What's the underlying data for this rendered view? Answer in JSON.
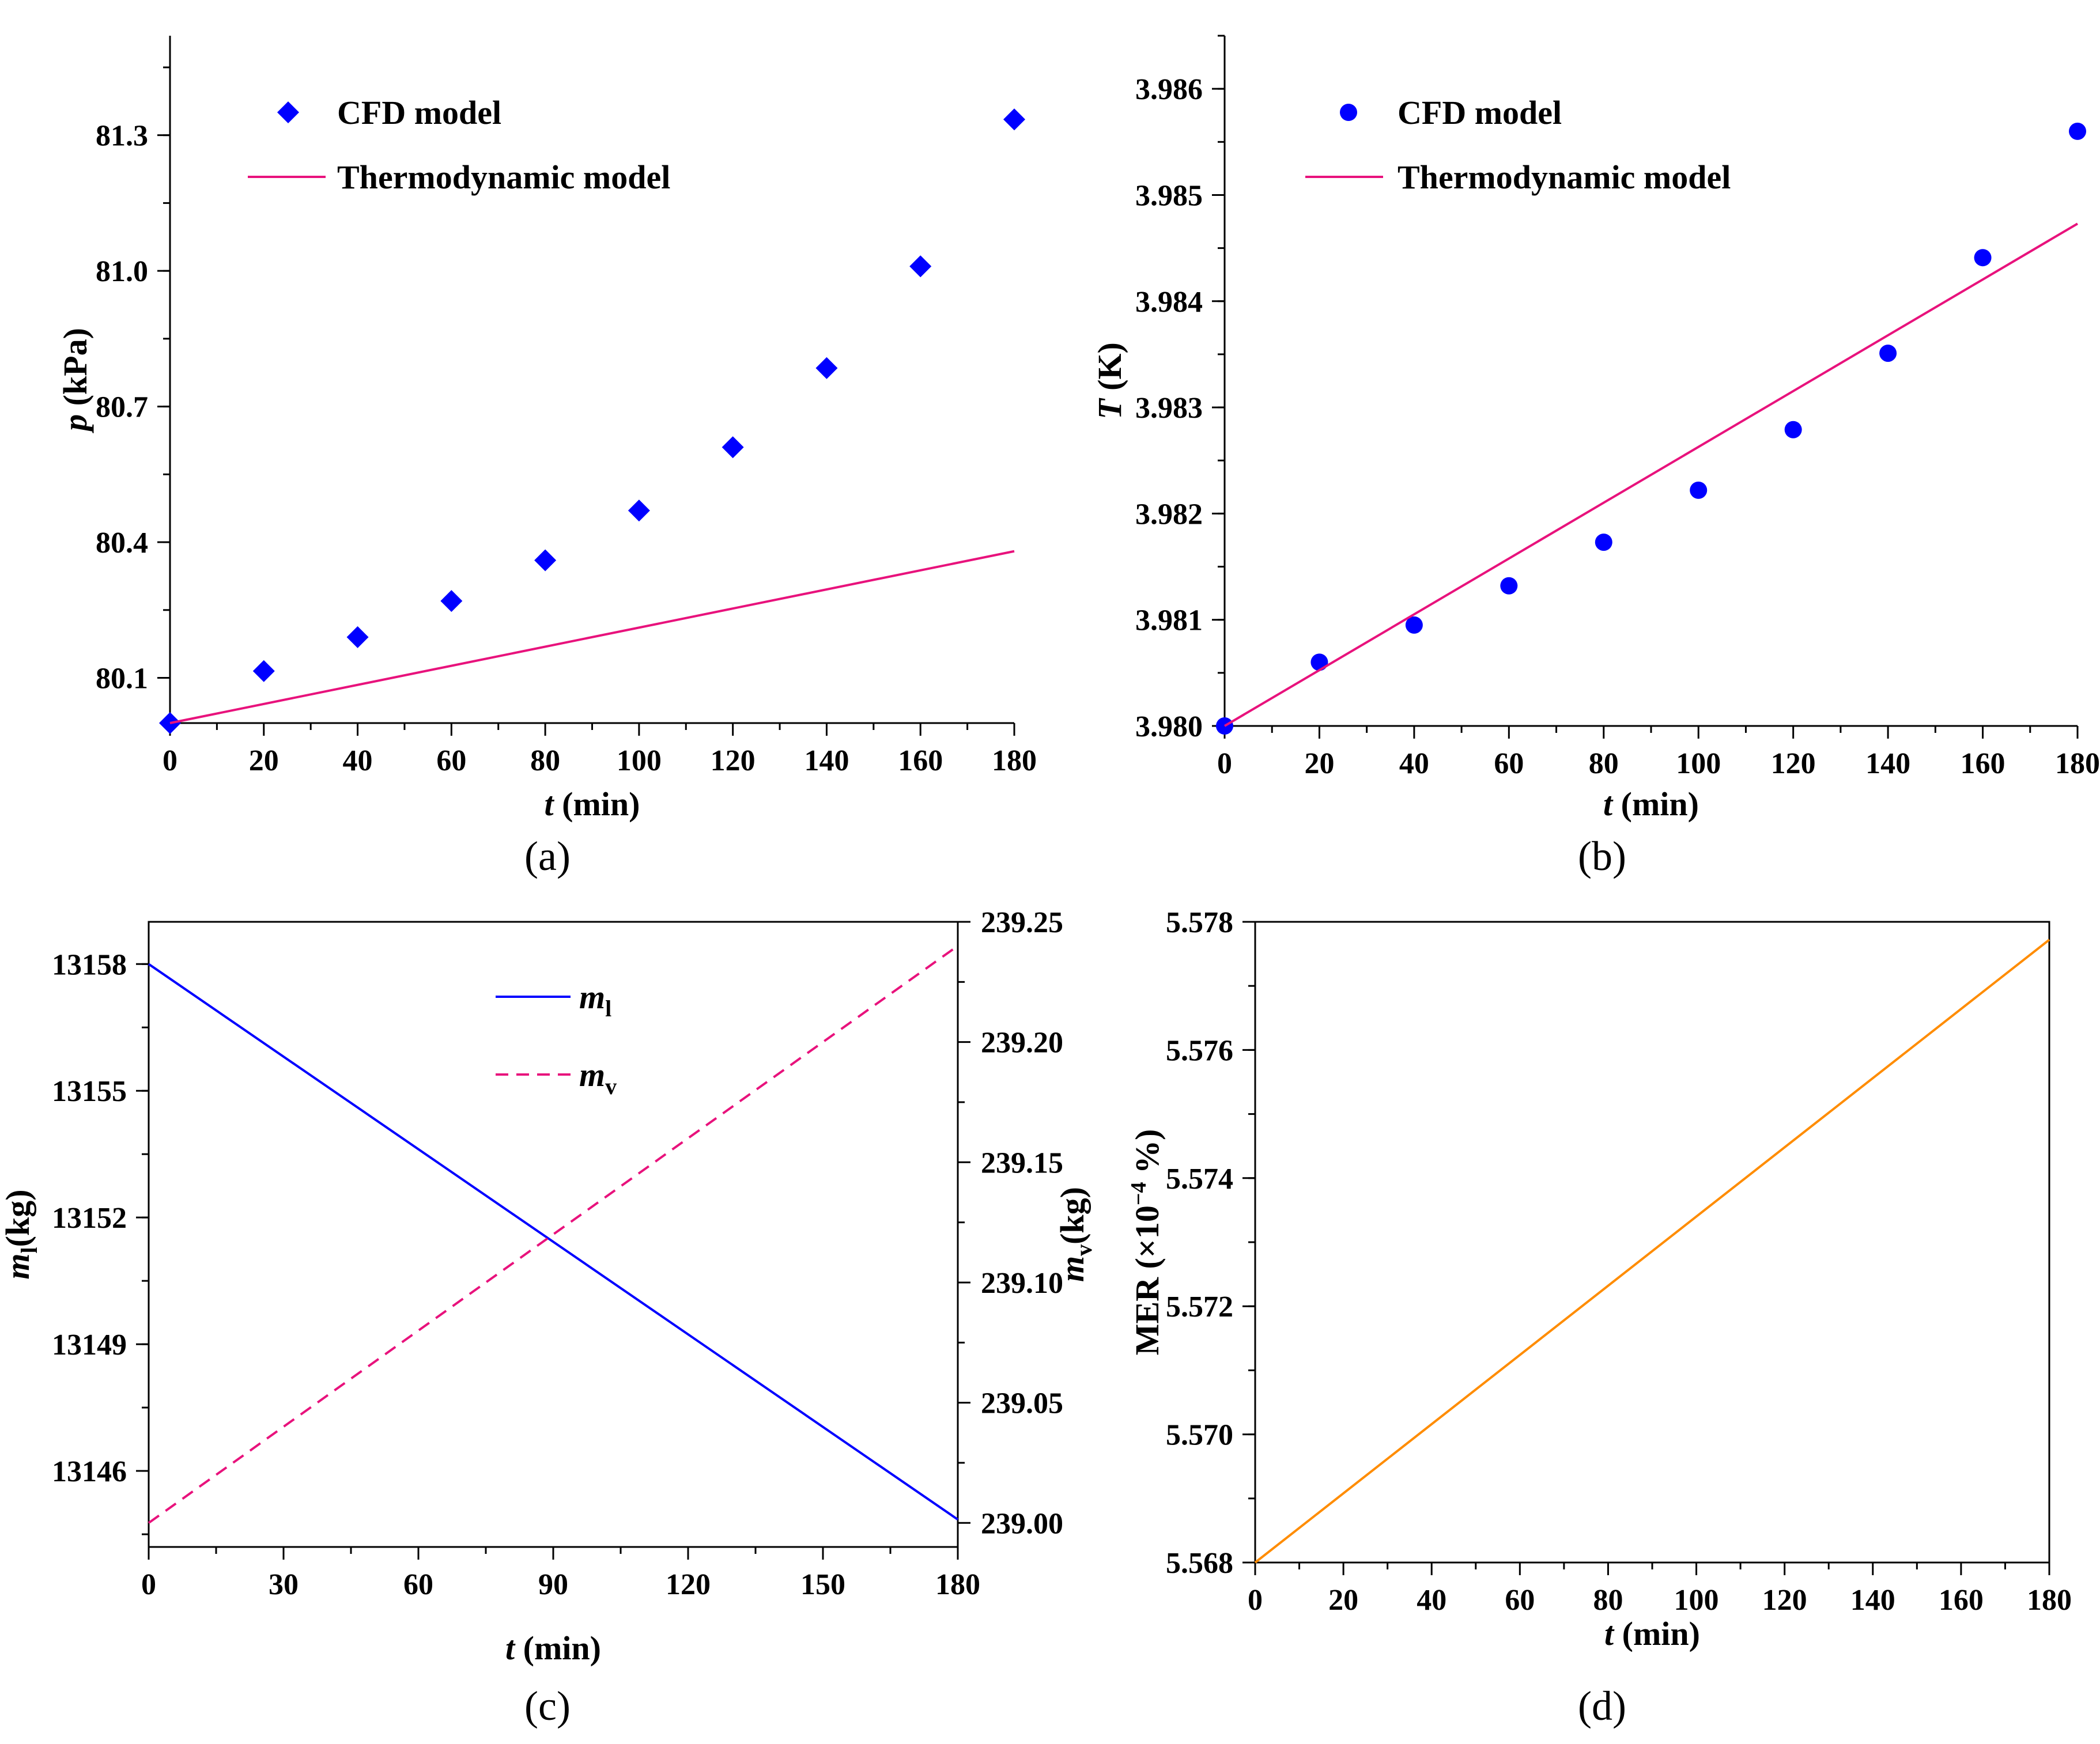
{
  "chart_data": [
    {
      "id": "a",
      "type": "scatter",
      "panel_label": "(a)",
      "xlabel": {
        "italic": "t",
        "rest": " (min)"
      },
      "ylabel": {
        "italic": "p",
        "rest": " (kPa)"
      },
      "xlim": [
        0,
        180
      ],
      "ylim": [
        80.0,
        81.52
      ],
      "x_ticks": [
        0,
        20,
        40,
        60,
        80,
        100,
        120,
        140,
        160,
        180
      ],
      "y_ticks": [
        80.1,
        80.4,
        80.7,
        81.0,
        81.3
      ],
      "x_tick_labels": [
        "0",
        "20",
        "40",
        "60",
        "80",
        "100",
        "120",
        "140",
        "160",
        "180"
      ],
      "y_tick_labels": [
        "80.1",
        "80.4",
        "80.7",
        "81.0",
        "81.3"
      ],
      "legend": [
        "CFD model",
        "Thermodynamic model"
      ],
      "legend_position": "top-left",
      "series": [
        {
          "name": "CFD model",
          "kind": "points",
          "marker": "diamond",
          "color": "#0000ff",
          "x": [
            0,
            20,
            40,
            60,
            80,
            100,
            120,
            140,
            160,
            180
          ],
          "y": [
            80.0,
            80.115,
            80.19,
            80.27,
            80.36,
            80.47,
            80.61,
            80.785,
            81.01,
            81.335
          ]
        },
        {
          "name": "Thermodynamic model",
          "kind": "line",
          "color": "#e8127c",
          "x": [
            0,
            180
          ],
          "y": [
            80.0,
            80.38
          ]
        }
      ]
    },
    {
      "id": "b",
      "type": "scatter",
      "panel_label": "(b)",
      "xlabel": {
        "italic": "t",
        "rest": " (min)"
      },
      "ylabel": {
        "italic": "T",
        "rest": " (K)"
      },
      "xlim": [
        0,
        180
      ],
      "ylim": [
        3.98,
        3.9865
      ],
      "x_ticks": [
        0,
        20,
        40,
        60,
        80,
        100,
        120,
        140,
        160,
        180
      ],
      "y_ticks": [
        3.98,
        3.981,
        3.982,
        3.983,
        3.984,
        3.985,
        3.986
      ],
      "x_tick_labels": [
        "0",
        "20",
        "40",
        "60",
        "80",
        "100",
        "120",
        "140",
        "160",
        "180"
      ],
      "y_tick_labels": [
        "3.980",
        "3.981",
        "3.982",
        "3.983",
        "3.984",
        "3.985",
        "3.986"
      ],
      "legend": [
        "CFD model",
        "Thermodynamic model"
      ],
      "legend_position": "top-left",
      "series": [
        {
          "name": "CFD model",
          "kind": "points",
          "marker": "circle",
          "color": "#0000ff",
          "x": [
            0,
            20,
            40,
            60,
            80,
            100,
            120,
            140,
            160,
            180
          ],
          "y": [
            3.98,
            3.9806,
            3.98095,
            3.98132,
            3.98173,
            3.98222,
            3.98279,
            3.98351,
            3.98441,
            3.9856
          ]
        },
        {
          "name": "Thermodynamic model",
          "kind": "line",
          "color": "#e8127c",
          "x": [
            0,
            180
          ],
          "y": [
            3.98,
            3.98473
          ]
        }
      ]
    },
    {
      "id": "c",
      "type": "line",
      "panel_label": "(c)",
      "xlabel": {
        "italic": "t",
        "rest": " (min)"
      },
      "ylabel": {
        "italic": "m",
        "sub": "l",
        "rest": "(kg)"
      },
      "y2label": {
        "italic": "m",
        "sub": "v",
        "rest": "(kg)"
      },
      "xlim": [
        0,
        180
      ],
      "ylim": [
        13144.2,
        13159.0
      ],
      "y2lim": [
        238.99,
        239.25
      ],
      "x_ticks": [
        0,
        30,
        60,
        90,
        120,
        150,
        180
      ],
      "y_ticks": [
        13146,
        13149,
        13152,
        13155,
        13158
      ],
      "y2_ticks": [
        239.0,
        239.05,
        239.1,
        239.15,
        239.2,
        239.25
      ],
      "x_tick_labels": [
        "0",
        "30",
        "60",
        "90",
        "120",
        "150",
        "180"
      ],
      "y_tick_labels": [
        "13146",
        "13149",
        "13152",
        "13155",
        "13158"
      ],
      "y2_tick_labels": [
        "239.00",
        "239.05",
        "239.10",
        "239.15",
        "239.20",
        "239.25"
      ],
      "legend": [
        {
          "italic": "m",
          "sub": "l"
        },
        {
          "italic": "m",
          "sub": "v"
        }
      ],
      "legend_position": "top-center",
      "series": [
        {
          "name": "m_l",
          "kind": "line",
          "axis": "left",
          "color": "#0000ff",
          "dash": "solid",
          "x": [
            0,
            180
          ],
          "y": [
            13158.0,
            13144.85
          ]
        },
        {
          "name": "m_v",
          "kind": "line",
          "axis": "right",
          "color": "#e8127c",
          "dash": "dashed",
          "x": [
            0,
            180
          ],
          "y": [
            239.0,
            239.24
          ]
        }
      ]
    },
    {
      "id": "d",
      "type": "line",
      "panel_label": "(d)",
      "xlabel": {
        "italic": "t",
        "rest": " (min)"
      },
      "ylabel": {
        "plain": "MER (×10",
        "sup": "−4",
        "after": " %)"
      },
      "xlim": [
        0,
        180
      ],
      "ylim": [
        5.568,
        5.578
      ],
      "x_ticks": [
        0,
        20,
        40,
        60,
        80,
        100,
        120,
        140,
        160,
        180
      ],
      "y_ticks": [
        5.568,
        5.57,
        5.572,
        5.574,
        5.576,
        5.578
      ],
      "x_tick_labels": [
        "0",
        "20",
        "40",
        "60",
        "80",
        "100",
        "120",
        "140",
        "160",
        "180"
      ],
      "y_tick_labels": [
        "5.568",
        "5.570",
        "5.572",
        "5.574",
        "5.576",
        "5.578"
      ],
      "series": [
        {
          "name": "MER",
          "kind": "line",
          "color": "#ff8c00",
          "dash": "solid",
          "x": [
            0,
            180
          ],
          "y": [
            5.568,
            5.57772
          ]
        }
      ]
    }
  ]
}
